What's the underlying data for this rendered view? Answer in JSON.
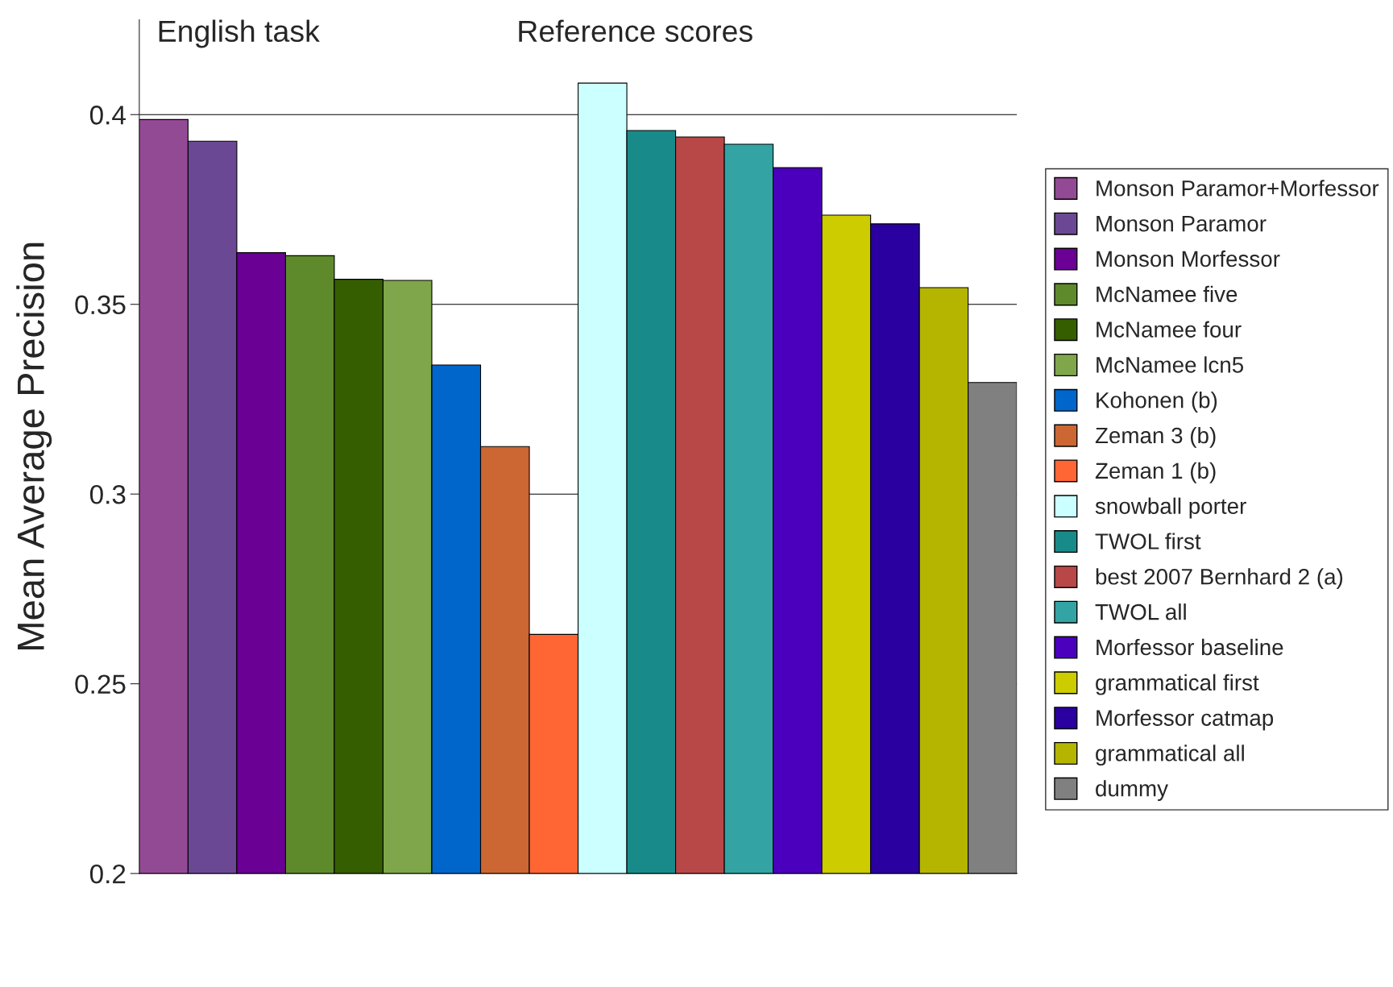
{
  "chart_data": {
    "type": "bar",
    "ylabel": "Mean Average Precision",
    "annotations": [
      "English task",
      "Reference scores"
    ],
    "categories": [
      null,
      null,
      null,
      null,
      null,
      null,
      null,
      null,
      null,
      null,
      null,
      null,
      null,
      null,
      null,
      null,
      null,
      null
    ],
    "series": [
      {
        "name": "Monson Paramor+Morfessor",
        "color": "#934a94",
        "values": [
          0.3987,
          null,
          null,
          null,
          null,
          null,
          null,
          null,
          null,
          null,
          null,
          null,
          null,
          null,
          null,
          null,
          null,
          null
        ]
      },
      {
        "name": "Monson Paramor",
        "color": "#6b4894",
        "values": [
          null,
          0.393,
          null,
          null,
          null,
          null,
          null,
          null,
          null,
          null,
          null,
          null,
          null,
          null,
          null,
          null,
          null,
          null
        ]
      },
      {
        "name": "Monson Morfessor",
        "color": "#6a0094",
        "values": [
          null,
          null,
          0.3636,
          null,
          null,
          null,
          null,
          null,
          null,
          null,
          null,
          null,
          null,
          null,
          null,
          null,
          null,
          null
        ]
      },
      {
        "name": "McNamee five",
        "color": "#5e8a2c",
        "values": [
          null,
          null,
          null,
          0.3628,
          null,
          null,
          null,
          null,
          null,
          null,
          null,
          null,
          null,
          null,
          null,
          null,
          null,
          null
        ]
      },
      {
        "name": "McNamee four",
        "color": "#345e00",
        "values": [
          null,
          null,
          null,
          null,
          0.3566,
          null,
          null,
          null,
          null,
          null,
          null,
          null,
          null,
          null,
          null,
          null,
          null,
          null
        ]
      },
      {
        "name": "McNamee lcn5",
        "color": "#7fa64a",
        "values": [
          null,
          null,
          null,
          null,
          null,
          0.3563,
          null,
          null,
          null,
          null,
          null,
          null,
          null,
          null,
          null,
          null,
          null,
          null
        ]
      },
      {
        "name": "Kohonen (b)",
        "color": "#0066cc",
        "values": [
          null,
          null,
          null,
          null,
          null,
          null,
          0.334,
          null,
          null,
          null,
          null,
          null,
          null,
          null,
          null,
          null,
          null,
          null
        ]
      },
      {
        "name": "Zeman 3 (b)",
        "color": "#cc6633",
        "values": [
          null,
          null,
          null,
          null,
          null,
          null,
          null,
          0.3125,
          null,
          null,
          null,
          null,
          null,
          null,
          null,
          null,
          null,
          null
        ]
      },
      {
        "name": "Zeman 1 (b)",
        "color": "#ff6633",
        "values": [
          null,
          null,
          null,
          null,
          null,
          null,
          null,
          null,
          0.263,
          null,
          null,
          null,
          null,
          null,
          null,
          null,
          null,
          null
        ]
      },
      {
        "name": "snowball porter",
        "color": "#ccffff",
        "values": [
          null,
          null,
          null,
          null,
          null,
          null,
          null,
          null,
          null,
          0.4083,
          null,
          null,
          null,
          null,
          null,
          null,
          null,
          null
        ]
      },
      {
        "name": "TWOL first",
        "color": "#198a8a",
        "values": [
          null,
          null,
          null,
          null,
          null,
          null,
          null,
          null,
          null,
          null,
          0.3958,
          null,
          null,
          null,
          null,
          null,
          null,
          null
        ]
      },
      {
        "name": "best 2007 Bernhard 2 (a)",
        "color": "#b84747",
        "values": [
          null,
          null,
          null,
          null,
          null,
          null,
          null,
          null,
          null,
          null,
          null,
          0.3941,
          null,
          null,
          null,
          null,
          null,
          null
        ]
      },
      {
        "name": "TWOL all",
        "color": "#33a3a3",
        "values": [
          null,
          null,
          null,
          null,
          null,
          null,
          null,
          null,
          null,
          null,
          null,
          null,
          0.3922,
          null,
          null,
          null,
          null,
          null
        ]
      },
      {
        "name": "Morfessor baseline",
        "color": "#4a00bd",
        "values": [
          null,
          null,
          null,
          null,
          null,
          null,
          null,
          null,
          null,
          null,
          null,
          null,
          null,
          0.386,
          null,
          null,
          null,
          null
        ]
      },
      {
        "name": "grammatical first",
        "color": "#cccc00",
        "values": [
          null,
          null,
          null,
          null,
          null,
          null,
          null,
          null,
          null,
          null,
          null,
          null,
          null,
          null,
          0.3735,
          null,
          null,
          null
        ]
      },
      {
        "name": "Morfessor catmap",
        "color": "#2a00a0",
        "values": [
          null,
          null,
          null,
          null,
          null,
          null,
          null,
          null,
          null,
          null,
          null,
          null,
          null,
          null,
          null,
          0.3712,
          null,
          null
        ]
      },
      {
        "name": "grammatical all",
        "color": "#b5b500",
        "values": [
          null,
          null,
          null,
          null,
          null,
          null,
          null,
          null,
          null,
          null,
          null,
          null,
          null,
          null,
          null,
          null,
          0.3544,
          null
        ]
      },
      {
        "name": "dummy",
        "color": "#808080",
        "values": [
          null,
          null,
          null,
          null,
          null,
          null,
          null,
          null,
          null,
          null,
          null,
          null,
          null,
          null,
          null,
          null,
          null,
          0.3294
        ]
      }
    ],
    "ylim": [
      0.2,
      0.425
    ],
    "yticks": [
      0.2,
      0.25,
      0.3,
      0.35,
      0.4
    ],
    "grid": "y",
    "legend": "right",
    "tick_labels": "y"
  }
}
